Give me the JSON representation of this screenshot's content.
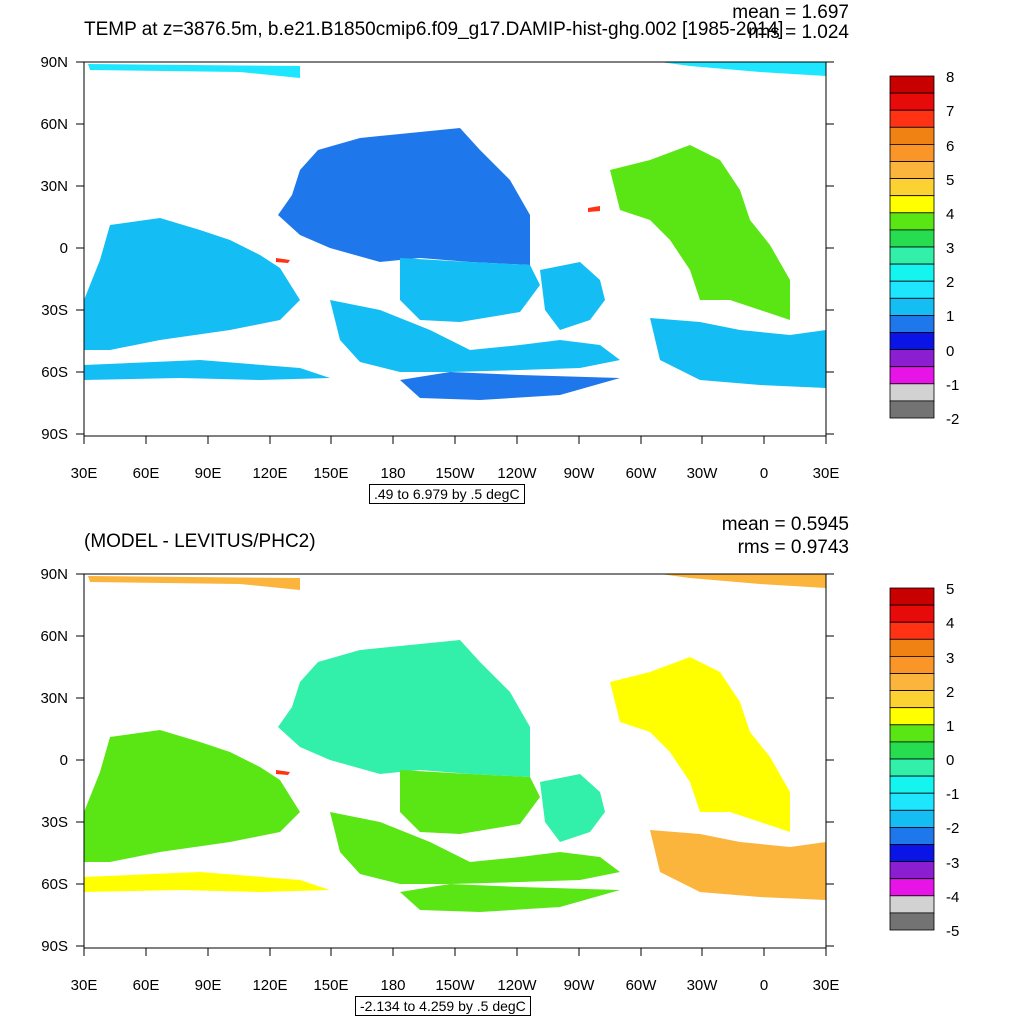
{
  "panels": [
    {
      "title": "TEMP at z=3876.5m, b.e21.B1850cmip6.f09_g17.DAMIP-hist-ghg.002 [1985-2014]",
      "mean_label": "mean = 1.697",
      "rms_label": "rms = 1.024",
      "contour_info": ".49 to 6.979 by .5 degC",
      "colorbar": {
        "labels": [
          "8",
          "7",
          "6",
          "5",
          "4",
          "3",
          "2",
          "1",
          "0",
          "-1",
          "-2"
        ],
        "colors": [
          "#c80000",
          "#e60a0a",
          "#ff3214",
          "#f08214",
          "#fa9628",
          "#fbb43c",
          "#fcd232",
          "#ffff00",
          "#5ae614",
          "#28dc50",
          "#32f0aa",
          "#14f5f0",
          "#1ee6ff",
          "#14bef5",
          "#1e78eb",
          "#0a14e6",
          "#8c1ed2",
          "#e614e6",
          "#d2d2d2",
          "#737373"
        ]
      },
      "map_fill": {
        "main": "#1e78eb",
        "south": "#14bef5",
        "east": "#5ae614"
      }
    },
    {
      "title": "(MODEL - LEVITUS/PHC2)",
      "mean_label": "mean = 0.5945",
      "rms_label": "rms = 0.9743",
      "contour_info": "-2.134 to 4.259 by .5 degC",
      "colorbar": {
        "labels": [
          "5",
          "4",
          "3",
          "2",
          "1",
          "0",
          "-1",
          "-2",
          "-3",
          "-4",
          "-5"
        ],
        "colors": [
          "#c80000",
          "#e60a0a",
          "#ff3214",
          "#f08214",
          "#fa9628",
          "#fbb43c",
          "#fcd232",
          "#ffff00",
          "#5ae614",
          "#28dc50",
          "#32f0aa",
          "#14f5f0",
          "#1ee6ff",
          "#14bef5",
          "#1e78eb",
          "#0a14e6",
          "#8c1ed2",
          "#e614e6",
          "#d2d2d2",
          "#737373"
        ]
      },
      "map_fill": {
        "main": "#32f0aa",
        "south": "#ffff00",
        "east": "#fbb43c"
      }
    }
  ],
  "lat_labels": [
    "90N",
    "60N",
    "30N",
    "0",
    "30S",
    "60S",
    "90S"
  ],
  "lon_labels": [
    "30E",
    "60E",
    "90E",
    "120E",
    "150E",
    "180",
    "150W",
    "120W",
    "90W",
    "60W",
    "30W",
    "0",
    "30E"
  ]
}
